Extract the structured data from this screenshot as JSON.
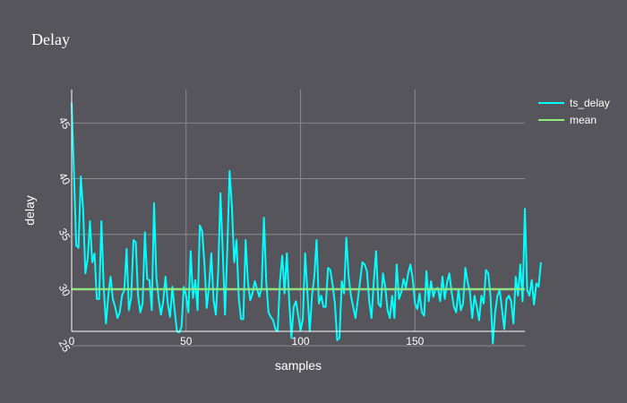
{
  "chart_data": {
    "type": "line",
    "title": "Delay",
    "xlabel": "samples",
    "ylabel": "delay",
    "xlim": [
      0,
      198
    ],
    "ylim": [
      26.3,
      48
    ],
    "xticks": [
      "0",
      "50",
      "100",
      "150"
    ],
    "yticks": [
      "25",
      "30",
      "35",
      "40",
      "45"
    ],
    "grid": true,
    "legend": "top-right",
    "series": [
      {
        "name": "ts_delay",
        "color": "#00ffff",
        "values": [
          46.8,
          40.5,
          34,
          33.8,
          40.2,
          37.2,
          31.5,
          32.8,
          36.2,
          32.5,
          33.3,
          29.2,
          29.2,
          36.2,
          30.2,
          27,
          29.5,
          31.2,
          29.2,
          28.5,
          27.5,
          28,
          29.5,
          30,
          33.7,
          28.2,
          29.3,
          34.5,
          34.3,
          29.5,
          28,
          28.8,
          35.2,
          31,
          30.9,
          28.2,
          37.8,
          31.2,
          29.2,
          27.8,
          29,
          31.2,
          28.8,
          27.6,
          30.3,
          28.2,
          26.3,
          26.2,
          26.7,
          30.3,
          29.5,
          28,
          33.5,
          29.3,
          30.9,
          28.2,
          35.8,
          35.3,
          32.4,
          28.4,
          30.3,
          33.3,
          29.1,
          27.8,
          31.6,
          38.7,
          33.5,
          27.8,
          33.7,
          40.7,
          37.5,
          32.5,
          34.5,
          29.3,
          27.4,
          27.4,
          34.5,
          30.7,
          29.1,
          29.7,
          30.8,
          30.1,
          29.4,
          30.3,
          36.5,
          30.8,
          28,
          27.6,
          27.3,
          26.5,
          26.3,
          30.8,
          33.1,
          29.7,
          33.3,
          29.2,
          25.7,
          28.5,
          29,
          27.7,
          26.4,
          27.4,
          33.3,
          29.8,
          26.3,
          29.5,
          31.2,
          34.5,
          28.8,
          29.5,
          28.5,
          28.5,
          32,
          31.8,
          30.5,
          28.8,
          25.5,
          25.7,
          30.8,
          29.7,
          34.7,
          31.2,
          29.5,
          28.5,
          27.5,
          29.1,
          30.8,
          32.5,
          32.3,
          31.7,
          29,
          27.5,
          30.8,
          33.5,
          28.8,
          28.5,
          31.5,
          30.3,
          28.2,
          27.5,
          29.5,
          27.5,
          32.3,
          29.2,
          29.8,
          31,
          30.2,
          31.5,
          32.3,
          31,
          28.8,
          28.3,
          29.7,
          28,
          27.7,
          31.7,
          29,
          30.8,
          29.4,
          30.1,
          30.2,
          29,
          31.2,
          29.2,
          30.7,
          31.5,
          29.8,
          28.5,
          28,
          30.1,
          28.2,
          28.8,
          32,
          30.7,
          29.8,
          27.5,
          29.5,
          28.5,
          27.3,
          29.5,
          28.8,
          31.8,
          31.5,
          29.4,
          25.2,
          28,
          29.5,
          30,
          28.3,
          26.5,
          29.2,
          29.5,
          29,
          27,
          31.2,
          29.5,
          32.3,
          29,
          37.3,
          30,
          29.5,
          30.9,
          28.7,
          30.6,
          30.3,
          32.5
        ]
      },
      {
        "name": "mean",
        "color": "#90ee78",
        "values": [
          30.1,
          30.1
        ]
      }
    ]
  }
}
